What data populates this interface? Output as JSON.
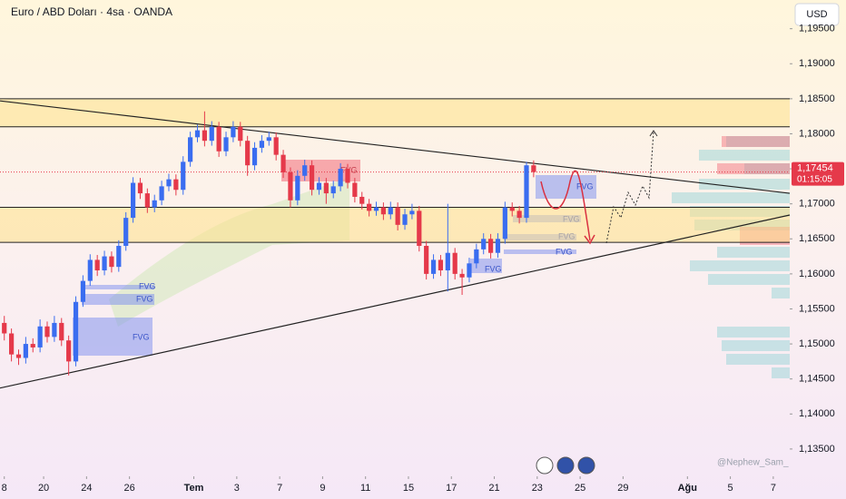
{
  "chart_data": {
    "type": "candlestick",
    "title": "Euro / ABD Doları · 4sa · OANDA",
    "currency": "USD",
    "watermark": "@Nephew_Sam_",
    "fvg_label": "FVG",
    "up_color": "#3a6df0",
    "down_color": "#e5394a",
    "grid": false,
    "ylim": [
      1.1311,
      1.1991
    ],
    "xlim": [
      -0.6,
      109.8
    ],
    "yticks": [
      {
        "value": 1.135,
        "label": "1,13500"
      },
      {
        "value": 1.14,
        "label": "1,14000"
      },
      {
        "value": 1.145,
        "label": "1,14500"
      },
      {
        "value": 1.15,
        "label": "1,15000"
      },
      {
        "value": 1.155,
        "label": "1,15500"
      },
      {
        "value": 1.16,
        "label": "1,16000"
      },
      {
        "value": 1.165,
        "label": "1,16500"
      },
      {
        "value": 1.17,
        "label": "1,17000"
      },
      {
        "value": 1.175,
        "label": "1,17500"
      },
      {
        "value": 1.18,
        "label": "1,18000"
      },
      {
        "value": 1.185,
        "label": "1,18500"
      },
      {
        "value": 1.19,
        "label": "1,19000"
      },
      {
        "value": 1.195,
        "label": "1,19500"
      }
    ],
    "xticks": [
      {
        "value": 0,
        "label": "8"
      },
      {
        "value": 5.5,
        "label": "20"
      },
      {
        "value": 11.5,
        "label": "24"
      },
      {
        "value": 17.5,
        "label": "26"
      },
      {
        "value": 26.5,
        "label": "Tem"
      },
      {
        "value": 32.5,
        "label": "3"
      },
      {
        "value": 38.5,
        "label": "7"
      },
      {
        "value": 44.5,
        "label": "9"
      },
      {
        "value": 50.5,
        "label": "11"
      },
      {
        "value": 56.5,
        "label": "15"
      },
      {
        "value": 62.5,
        "label": "17"
      },
      {
        "value": 68.5,
        "label": "21"
      },
      {
        "value": 74.5,
        "label": "23"
      },
      {
        "value": 80.5,
        "label": "25"
      },
      {
        "value": 86.5,
        "label": "29"
      },
      {
        "value": 95.5,
        "label": "Ağu"
      },
      {
        "value": 101.5,
        "label": "5"
      },
      {
        "value": 107.5,
        "label": "7"
      }
    ],
    "levels": [
      1.185,
      1.181,
      1.1695,
      1.1645
    ],
    "trendlines": [
      {
        "from": 1.1847,
        "to": 1.1715
      },
      {
        "from": 1.1437,
        "to": 1.1684
      }
    ],
    "last_price": {
      "value": 1.17454,
      "label": "1,17454"
    },
    "countdown": "01:15:05",
    "candles": [
      [
        1.153,
        1.154,
        1.1505,
        1.1515
      ],
      [
        1.1515,
        1.1522,
        1.1475,
        1.1485
      ],
      [
        1.1485,
        1.1492,
        1.147,
        1.148
      ],
      [
        1.148,
        1.151,
        1.1472,
        1.15
      ],
      [
        1.15,
        1.1508,
        1.1488,
        1.1495
      ],
      [
        1.1495,
        1.1535,
        1.1488,
        1.1525
      ],
      [
        1.1525,
        1.1532,
        1.1502,
        1.151
      ],
      [
        1.151,
        1.154,
        1.1503,
        1.153
      ],
      [
        1.153,
        1.1537,
        1.1497,
        1.1505
      ],
      [
        1.1505,
        1.1512,
        1.1455,
        1.1475
      ],
      [
        1.1475,
        1.1568,
        1.1468,
        1.156
      ],
      [
        1.156,
        1.1598,
        1.1553,
        1.159
      ],
      [
        1.159,
        1.1628,
        1.1583,
        1.162
      ],
      [
        1.162,
        1.1627,
        1.1597,
        1.1605
      ],
      [
        1.1605,
        1.1633,
        1.1598,
        1.1625
      ],
      [
        1.1625,
        1.1632,
        1.1602,
        1.161
      ],
      [
        1.161,
        1.1648,
        1.1603,
        1.164
      ],
      [
        1.164,
        1.1688,
        1.1633,
        1.168
      ],
      [
        1.168,
        1.1738,
        1.1673,
        1.173
      ],
      [
        1.173,
        1.1737,
        1.1707,
        1.1715
      ],
      [
        1.1715,
        1.1722,
        1.1687,
        1.1695
      ],
      [
        1.1695,
        1.1713,
        1.1688,
        1.1705
      ],
      [
        1.1705,
        1.1733,
        1.1698,
        1.1725
      ],
      [
        1.1725,
        1.1743,
        1.1718,
        1.1735
      ],
      [
        1.1735,
        1.1742,
        1.1712,
        1.172
      ],
      [
        1.172,
        1.1768,
        1.1713,
        1.176
      ],
      [
        1.176,
        1.1803,
        1.1753,
        1.1795
      ],
      [
        1.1795,
        1.1813,
        1.1788,
        1.1805
      ],
      [
        1.1805,
        1.1832,
        1.1782,
        1.179
      ],
      [
        1.179,
        1.1818,
        1.1783,
        1.181
      ],
      [
        1.181,
        1.1817,
        1.1767,
        1.1775
      ],
      [
        1.1775,
        1.1803,
        1.1768,
        1.1795
      ],
      [
        1.1795,
        1.1818,
        1.1788,
        1.181
      ],
      [
        1.181,
        1.1817,
        1.1782,
        1.179
      ],
      [
        1.179,
        1.1797,
        1.174,
        1.1755
      ],
      [
        1.1755,
        1.1788,
        1.1748,
        1.178
      ],
      [
        1.178,
        1.1798,
        1.1773,
        1.179
      ],
      [
        1.179,
        1.1803,
        1.1783,
        1.1795
      ],
      [
        1.1795,
        1.1802,
        1.1762,
        1.177
      ],
      [
        1.177,
        1.1777,
        1.1737,
        1.1745
      ],
      [
        1.1745,
        1.1752,
        1.1695,
        1.1705
      ],
      [
        1.1705,
        1.1748,
        1.1698,
        1.174
      ],
      [
        1.174,
        1.1763,
        1.1733,
        1.1755
      ],
      [
        1.1755,
        1.1762,
        1.1712,
        1.172
      ],
      [
        1.172,
        1.1738,
        1.1713,
        1.173
      ],
      [
        1.173,
        1.1737,
        1.17,
        1.1715
      ],
      [
        1.1715,
        1.1733,
        1.1708,
        1.1725
      ],
      [
        1.1725,
        1.1758,
        1.1718,
        1.175
      ],
      [
        1.175,
        1.1757,
        1.1722,
        1.173
      ],
      [
        1.173,
        1.1737,
        1.1702,
        1.171
      ],
      [
        1.171,
        1.1717,
        1.1692,
        1.17
      ],
      [
        1.17,
        1.1707,
        1.1682,
        1.169
      ],
      [
        1.169,
        1.1703,
        1.1683,
        1.1695
      ],
      [
        1.1695,
        1.1702,
        1.1677,
        1.1685
      ],
      [
        1.1685,
        1.1703,
        1.1678,
        1.1695
      ],
      [
        1.1695,
        1.1702,
        1.1662,
        1.167
      ],
      [
        1.167,
        1.1693,
        1.1663,
        1.1685
      ],
      [
        1.1685,
        1.17,
        1.1678,
        1.169
      ],
      [
        1.169,
        1.1697,
        1.1632,
        1.164
      ],
      [
        1.164,
        1.1647,
        1.1592,
        1.16
      ],
      [
        1.16,
        1.1628,
        1.1593,
        1.162
      ],
      [
        1.162,
        1.1627,
        1.1597,
        1.1605
      ],
      [
        1.1605,
        1.17,
        1.1575,
        1.163
      ],
      [
        1.163,
        1.1637,
        1.1592,
        1.16
      ],
      [
        1.16,
        1.1607,
        1.157,
        1.1595
      ],
      [
        1.1595,
        1.1623,
        1.1588,
        1.1615
      ],
      [
        1.1615,
        1.1643,
        1.1608,
        1.1635
      ],
      [
        1.1635,
        1.1658,
        1.1628,
        1.165
      ],
      [
        1.165,
        1.1657,
        1.1622,
        1.163
      ],
      [
        1.163,
        1.1658,
        1.1623,
        1.165
      ],
      [
        1.165,
        1.1703,
        1.1643,
        1.1695
      ],
      [
        1.1695,
        1.1702,
        1.1682,
        1.169
      ],
      [
        1.169,
        1.1697,
        1.1672,
        1.168
      ],
      [
        1.168,
        1.176,
        1.1673,
        1.1755
      ],
      [
        1.1755,
        1.1762,
        1.1738,
        1.17454
      ]
    ]
  }
}
